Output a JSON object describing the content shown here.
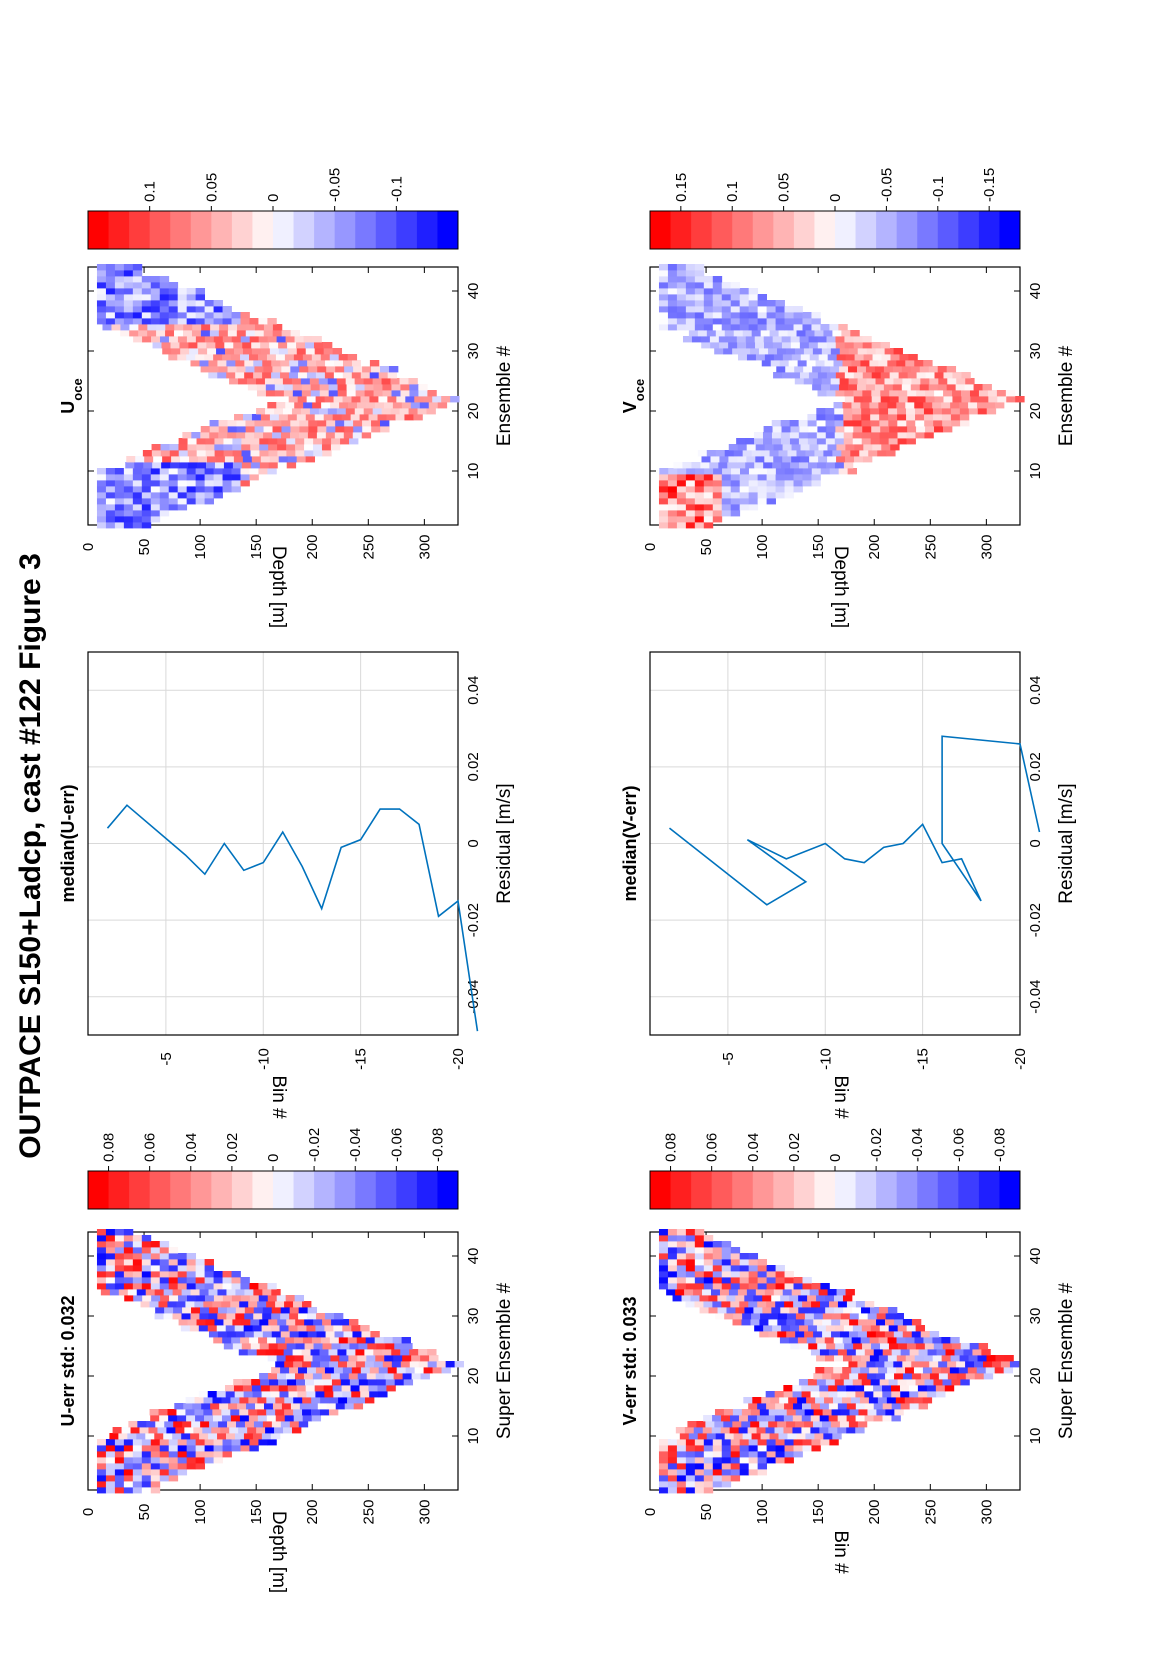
{
  "figure_title": "OUTPACE S150+Ladcp, cast #122  Figure 3",
  "colors": {
    "positive": "#ff0000",
    "neutral": "#ffffff",
    "negative": "#0000ff",
    "line": "#0072bd",
    "grid": "#d9d9d9"
  },
  "chart_data": [
    {
      "id": "u_err",
      "type": "heatmap",
      "title": "U-err std: 0.032",
      "xlabel": "Super Ensemble #",
      "ylabel": "Depth [m]",
      "xlim": [
        1,
        44
      ],
      "ylim": [
        0,
        330
      ],
      "xticks": [
        10,
        20,
        30,
        40
      ],
      "yticks": [
        0,
        50,
        100,
        150,
        200,
        250,
        300
      ],
      "colorbar": {
        "range": [
          -0.09,
          0.09
        ],
        "ticks": [
          0.08,
          0.06,
          0.04,
          0.02,
          0,
          -0.02,
          -0.04,
          -0.06,
          -0.08
        ]
      },
      "pattern": "V-shaped coverage: depth band deepens from ensemble 1 to ~22 (~330 m) then shoals back to surface by ensemble 44; near-random small red/blue residuals"
    },
    {
      "id": "u_profile",
      "type": "line",
      "title": "median(U-err)",
      "xlabel": "Residual [m/s]",
      "ylabel": "Bin #",
      "xlim": [
        -0.05,
        0.05
      ],
      "ylim": [
        -20,
        -1
      ],
      "xticks": [
        -0.04,
        -0.02,
        0,
        0.02,
        0.04
      ],
      "yticks": [
        -5,
        -10,
        -15,
        -20
      ],
      "series": [
        {
          "x": [
            0.004,
            0.01,
            -0.003,
            -0.008,
            0.0,
            -0.007,
            -0.005,
            0.003,
            -0.006,
            -0.017,
            -0.001,
            0.001,
            0.009,
            0.009,
            0.005,
            -0.019,
            -0.015,
            -0.049
          ],
          "y": [
            -2,
            -3,
            -6,
            -7,
            -8,
            -9,
            -10,
            -11,
            -12,
            -13,
            -14,
            -15,
            -16,
            -17,
            -18,
            -19,
            -20,
            -21
          ]
        }
      ]
    },
    {
      "id": "u_oce",
      "type": "heatmap",
      "title": "U",
      "title_sub": "oce",
      "xlabel": "Ensemble #",
      "ylabel": "Depth [m]",
      "xlim": [
        1,
        44
      ],
      "ylim": [
        0,
        330
      ],
      "xticks": [
        10,
        20,
        30,
        40
      ],
      "yticks": [
        0,
        50,
        100,
        150,
        200,
        250,
        300
      ],
      "colorbar": {
        "range": [
          -0.15,
          0.15
        ],
        "ticks": [
          0.1,
          0.05,
          0,
          -0.05,
          -0.1
        ]
      },
      "pattern": "blue in upper layer (~50-130 m) at early and late ensembles, red below ~130 m, blue patches near bottom of V"
    },
    {
      "id": "v_err",
      "type": "heatmap",
      "title": "V-err std: 0.033",
      "xlabel": "Super Ensemble #",
      "ylabel": "Bin #",
      "xlim": [
        1,
        44
      ],
      "ylim": [
        0,
        330
      ],
      "xticks": [
        10,
        20,
        30,
        40
      ],
      "yticks": [
        0,
        50,
        100,
        150,
        200,
        250,
        300
      ],
      "colorbar": {
        "range": [
          -0.09,
          0.09
        ],
        "ticks": [
          0.08,
          0.06,
          0.04,
          0.02,
          0,
          -0.02,
          -0.04,
          -0.06,
          -0.08
        ]
      },
      "pattern": "V-shaped coverage with mixed red/blue residuals, bluer on the late-ensemble limb"
    },
    {
      "id": "v_profile",
      "type": "line",
      "title": "median(V-err)",
      "xlabel": "Residual [m/s]",
      "ylabel": "Bin #",
      "xlim": [
        -0.05,
        0.05
      ],
      "ylim": [
        -20,
        -1
      ],
      "xticks": [
        -0.04,
        -0.02,
        0,
        0.02,
        0.04
      ],
      "yticks": [
        -5,
        -10,
        -15,
        -20
      ],
      "series": [
        {
          "x": [
            0.004,
            -0.016,
            -0.01,
            0.001,
            -0.004,
            0.0,
            -0.004,
            -0.005,
            -0.001,
            0.0,
            0.005,
            -0.005,
            -0.004,
            -0.015,
            0.0,
            0.028,
            0.026,
            0.003
          ],
          "y": [
            -2,
            -7,
            -9,
            -6,
            -8,
            -10,
            -11,
            -12,
            -13,
            -14,
            -15,
            -16,
            -17,
            -18,
            -16,
            -16,
            -20,
            -21
          ]
        }
      ]
    },
    {
      "id": "v_oce",
      "type": "heatmap",
      "title": "V",
      "title_sub": "oce",
      "xlabel": "Ensemble #",
      "ylabel": "Depth [m]",
      "xlim": [
        1,
        44
      ],
      "ylim": [
        0,
        330
      ],
      "xticks": [
        10,
        20,
        30,
        40
      ],
      "yticks": [
        0,
        50,
        100,
        150,
        200,
        250,
        300
      ],
      "colorbar": {
        "range": [
          -0.18,
          0.18
        ],
        "ticks": [
          0.15,
          0.1,
          0.05,
          0,
          -0.05,
          -0.1,
          -0.15
        ]
      },
      "pattern": "red near surface at first ensembles, blue band ~70-160 m, strong red deep (~200-330 m) around the bottom of the V"
    }
  ]
}
